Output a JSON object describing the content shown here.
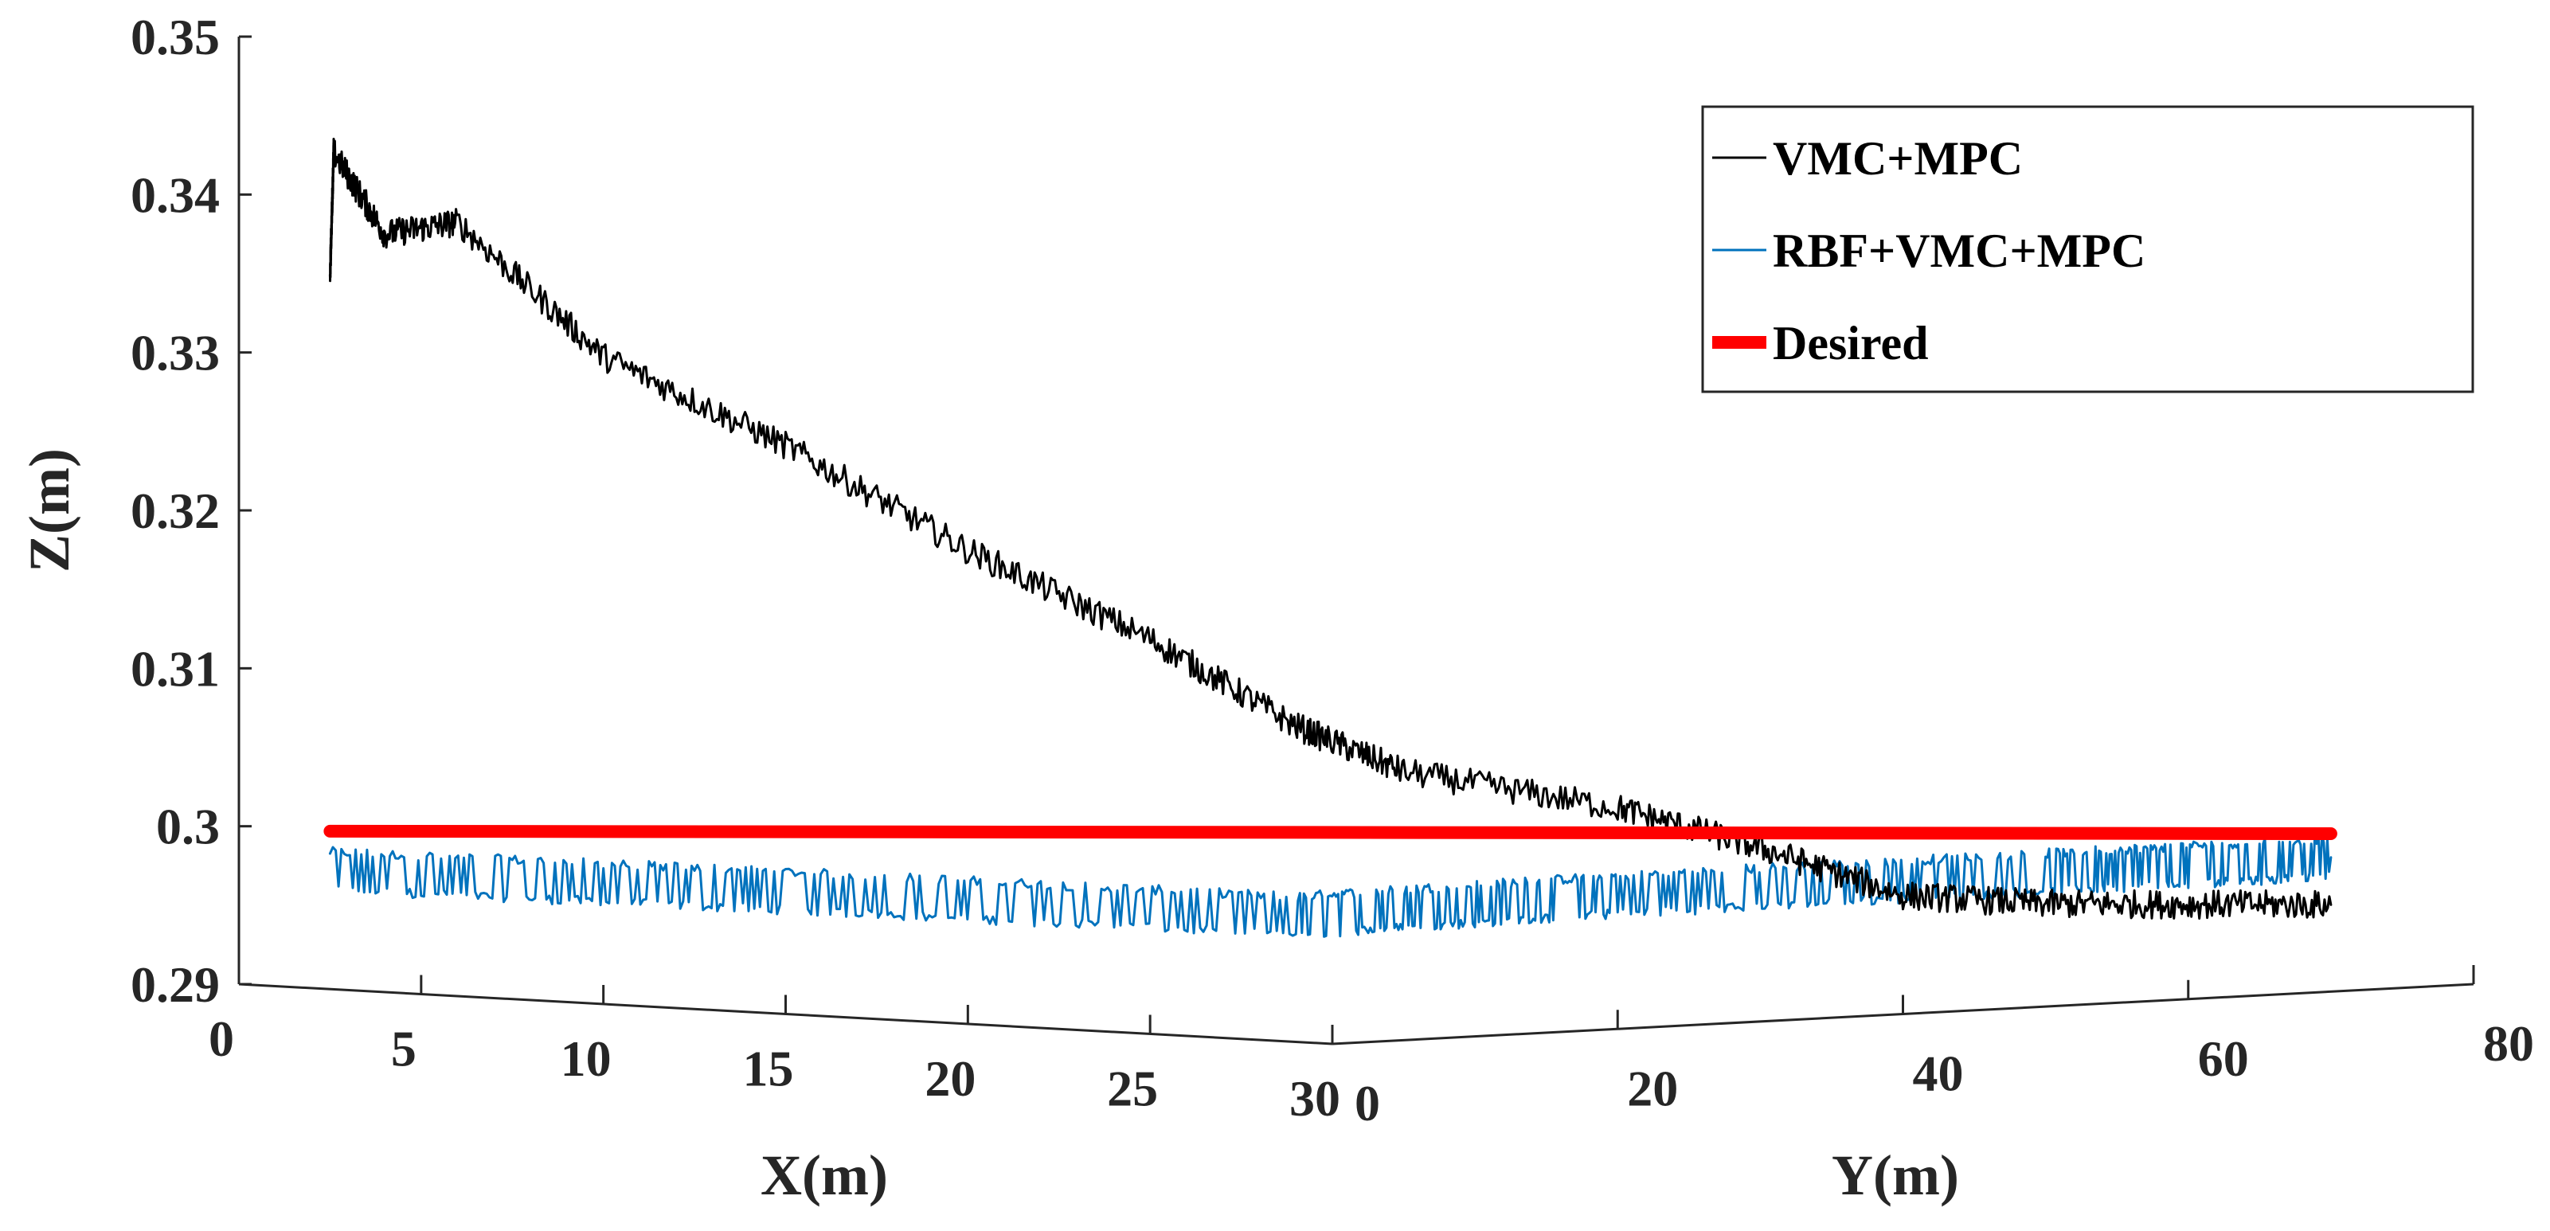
{
  "chart_data": {
    "type": "line",
    "view": "3d",
    "title": "",
    "xlabel": "X(m)",
    "ylabel": "Y(m)",
    "zlabel": "Z(m)",
    "xlim": [
      0,
      30
    ],
    "ylim": [
      0,
      80
    ],
    "zlim": [
      0.29,
      0.35
    ],
    "x_ticks": [
      "0",
      "5",
      "10",
      "15",
      "20",
      "25",
      "30"
    ],
    "y_ticks": [
      "0",
      "20",
      "40",
      "60",
      "80"
    ],
    "z_ticks": [
      "0.35",
      "0.34",
      "0.33",
      "0.32",
      "0.31",
      "0.3",
      "0.29"
    ],
    "grid": false,
    "legend_position": "top-right",
    "series": [
      {
        "name": "VMC+MPC",
        "color": "#000000",
        "path": [
          {
            "x": 2.5,
            "y": 0,
            "z": 0.335
          },
          {
            "x": 2.6,
            "y": 0,
            "z": 0.343
          },
          {
            "x": 4,
            "y": 0,
            "z": 0.338
          },
          {
            "x": 6,
            "y": 0,
            "z": 0.339
          },
          {
            "x": 10,
            "y": 0,
            "z": 0.331
          },
          {
            "x": 15,
            "y": 0,
            "z": 0.326
          },
          {
            "x": 20,
            "y": 0,
            "z": 0.32
          },
          {
            "x": 25,
            "y": 0,
            "z": 0.315
          },
          {
            "x": 29,
            "y": 0,
            "z": 0.31
          },
          {
            "x": 30,
            "y": 5,
            "z": 0.307
          },
          {
            "x": 30,
            "y": 20,
            "z": 0.304
          },
          {
            "x": 30,
            "y": 30,
            "z": 0.301
          },
          {
            "x": 30,
            "y": 40,
            "z": 0.2975
          },
          {
            "x": 30,
            "y": 50,
            "z": 0.2965
          },
          {
            "x": 30,
            "y": 60,
            "z": 0.296
          },
          {
            "x": 30,
            "y": 70,
            "z": 0.2955
          }
        ]
      },
      {
        "name": "RBF+VMC+MPC",
        "color": "#0072BD",
        "path": [
          {
            "x": 2.5,
            "y": 0,
            "z": 0.2975
          },
          {
            "x": 15,
            "y": 0,
            "z": 0.2978
          },
          {
            "x": 29,
            "y": 0,
            "z": 0.298
          },
          {
            "x": 30,
            "y": 20,
            "z": 0.2985
          },
          {
            "x": 30,
            "y": 50,
            "z": 0.2985
          },
          {
            "x": 30,
            "y": 70,
            "z": 0.2985
          }
        ]
      },
      {
        "name": "Desired",
        "color": "#FF0000",
        "path": [
          {
            "x": 2.5,
            "y": 0,
            "z": 0.3
          },
          {
            "x": 30,
            "y": 70,
            "z": 0.3
          }
        ]
      }
    ]
  }
}
